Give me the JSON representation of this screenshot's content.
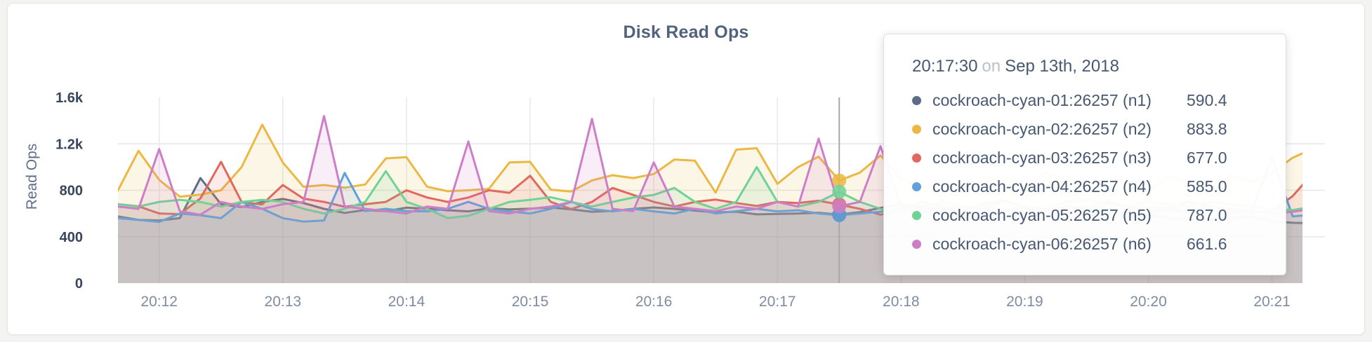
{
  "title": "Disk Read Ops",
  "tooltip": {
    "time": "20:17:30",
    "conjunction": "on",
    "date": "Sep 13th, 2018",
    "rows": [
      {
        "label": "cockroach-cyan-01:26257 (n1)",
        "value": "590.4",
        "color": "#5F6C87"
      },
      {
        "label": "cockroach-cyan-02:26257 (n2)",
        "value": "883.8",
        "color": "#EBB844"
      },
      {
        "label": "cockroach-cyan-03:26257 (n3)",
        "value": "677.0",
        "color": "#E0685F"
      },
      {
        "label": "cockroach-cyan-04:26257 (n4)",
        "value": "585.0",
        "color": "#61A0D9"
      },
      {
        "label": "cockroach-cyan-05:26257 (n5)",
        "value": "787.0",
        "color": "#70D294"
      },
      {
        "label": "cockroach-cyan-06:26257 (n6)",
        "value": "661.6",
        "color": "#CE7EC7"
      }
    ]
  },
  "chart_data": {
    "type": "line",
    "title": "Disk Read Ops",
    "xlabel": "",
    "ylabel": "Read Ops",
    "ylim": [
      0,
      1600
    ],
    "grid": true,
    "legend_position": "tooltip-only",
    "x_start": "20:11:40",
    "x_interval_seconds": 10,
    "y_ticks": [
      {
        "label": "0",
        "value": 0,
        "gridline": false
      },
      {
        "label": "400",
        "value": 400,
        "gridline": true
      },
      {
        "label": "800",
        "value": 800,
        "gridline": true
      },
      {
        "label": "1.2k",
        "value": 1200,
        "gridline": true
      },
      {
        "label": "1.6k",
        "value": 1600,
        "gridline": false
      }
    ],
    "x_ticks": [
      {
        "label": "20:12",
        "index": 2
      },
      {
        "label": "20:13",
        "index": 8
      },
      {
        "label": "20:14",
        "index": 14
      },
      {
        "label": "20:15",
        "index": 20
      },
      {
        "label": "20:16",
        "index": 26
      },
      {
        "label": "20:17",
        "index": 32
      },
      {
        "label": "20:18",
        "index": 38
      },
      {
        "label": "20:19",
        "index": 44
      },
      {
        "label": "20:20",
        "index": 50
      },
      {
        "label": "20:21",
        "index": 56
      }
    ],
    "hover_index": 35,
    "hover_time": "20:17:30",
    "series": [
      {
        "name": "cockroach-cyan-01:26257 (n1)",
        "color": "#5F6C87",
        "values": [
          575,
          545,
          540,
          560,
          905,
          680,
          655,
          700,
          725,
          690,
          640,
          605,
          630,
          620,
          650,
          640,
          628,
          618,
          645,
          635,
          642,
          652,
          635,
          615,
          622,
          640,
          652,
          640,
          625,
          610,
          615,
          592,
          596,
          600,
          606,
          590.4,
          612,
          648,
          680,
          658,
          638,
          620,
          612,
          605,
          615,
          625,
          605,
          592,
          580,
          575,
          585,
          562,
          548,
          552,
          560,
          572,
          532,
          520,
          515
        ]
      },
      {
        "name": "cockroach-cyan-02:26257 (n2)",
        "color": "#EBB844",
        "values": [
          800,
          1140,
          890,
          745,
          762,
          800,
          1000,
          1365,
          1040,
          830,
          845,
          822,
          850,
          1075,
          1085,
          830,
          792,
          800,
          812,
          1040,
          1045,
          805,
          790,
          885,
          930,
          905,
          940,
          1065,
          1055,
          780,
          1150,
          1162,
          855,
          1000,
          1090,
          883.8,
          952,
          1100,
          900,
          820,
          870,
          790,
          930,
          860,
          800,
          955,
          885,
          830,
          905,
          860,
          790,
          920,
          850,
          800,
          930,
          870,
          950,
          1080,
          1160
        ]
      },
      {
        "name": "cockroach-cyan-03:26257 (n3)",
        "color": "#E0685F",
        "values": [
          680,
          662,
          600,
          595,
          730,
          1045,
          700,
          678,
          845,
          728,
          700,
          658,
          680,
          700,
          800,
          738,
          700,
          738,
          800,
          778,
          925,
          700,
          638,
          700,
          820,
          760,
          700,
          660,
          700,
          720,
          690,
          665,
          700,
          690,
          710,
          677,
          640,
          590,
          630,
          700,
          660,
          620,
          680,
          710,
          650,
          620,
          665,
          640,
          700,
          660,
          620,
          650,
          700,
          660,
          630,
          600,
          620,
          750,
          950
        ]
      },
      {
        "name": "cockroach-cyan-04:26257 (n4)",
        "color": "#61A0D9",
        "values": [
          560,
          545,
          528,
          600,
          585,
          560,
          700,
          640,
          560,
          530,
          540,
          950,
          620,
          640,
          620,
          618,
          640,
          700,
          640,
          618,
          600,
          640,
          700,
          638,
          618,
          640,
          618,
          600,
          640,
          600,
          620,
          640,
          618,
          628,
          600,
          585,
          600,
          615,
          640,
          620,
          600,
          615,
          630,
          610,
          595,
          615,
          628,
          608,
          618,
          600,
          615,
          630,
          610,
          620,
          605,
          618,
          1080,
          575,
          590
        ]
      },
      {
        "name": "cockroach-cyan-05:26257 (n5)",
        "color": "#70D294",
        "values": [
          680,
          660,
          700,
          718,
          700,
          660,
          700,
          718,
          700,
          640,
          600,
          640,
          700,
          965,
          700,
          640,
          560,
          580,
          640,
          700,
          718,
          740,
          700,
          660,
          700,
          738,
          760,
          820,
          700,
          640,
          700,
          1000,
          700,
          660,
          700,
          787,
          700,
          640,
          618,
          640,
          700,
          660,
          640,
          700,
          660,
          640,
          700,
          718,
          680,
          660,
          700,
          680,
          660,
          700,
          680,
          660,
          640,
          630,
          660
        ]
      },
      {
        "name": "cockroach-cyan-06:26257 (n6)",
        "color": "#CE7EC7",
        "values": [
          660,
          640,
          1155,
          620,
          590,
          700,
          660,
          640,
          680,
          700,
          1440,
          660,
          640,
          620,
          600,
          660,
          640,
          1220,
          620,
          600,
          640,
          660,
          700,
          1415,
          640,
          620,
          1040,
          660,
          640,
          620,
          660,
          640,
          700,
          660,
          1245,
          661.6,
          700,
          1180,
          660,
          640,
          620,
          660,
          640,
          620,
          660,
          640,
          620,
          660,
          640,
          620,
          660,
          640,
          620,
          660,
          640,
          620,
          600,
          615,
          640
        ]
      }
    ],
    "colors": {
      "y_tick_text": "#37465c",
      "x_tick_text": "#7e8ca2",
      "axis_label_text": "#5e6f89",
      "gridline": "#e7e7e7",
      "crosshair": "#a8a8a8",
      "title_text": "#51627c"
    }
  }
}
